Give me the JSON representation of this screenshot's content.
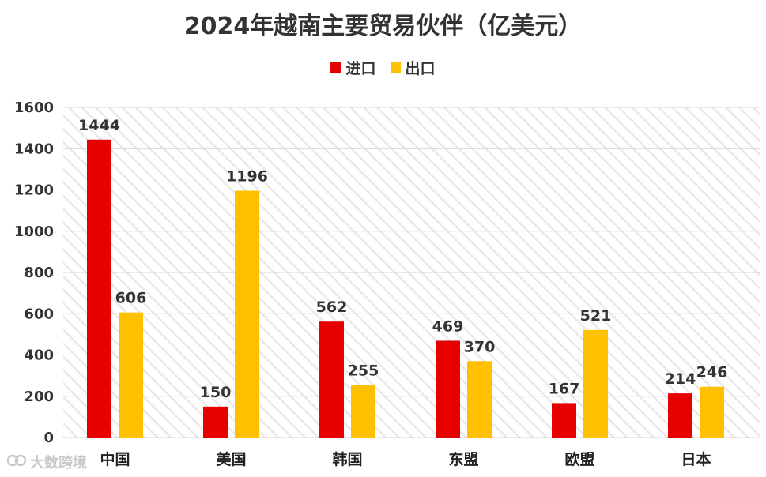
{
  "chart_data": {
    "type": "bar",
    "title": "2024年越南主要贸易伙伴（亿美元）",
    "categories": [
      "中国",
      "美国",
      "韩国",
      "东盟",
      "欧盟",
      "日本"
    ],
    "series": [
      {
        "name": "进口",
        "color": "#e60000",
        "values": [
          1444,
          150,
          562,
          469,
          167,
          214
        ]
      },
      {
        "name": "出口",
        "color": "#ffc000",
        "values": [
          606,
          1196,
          255,
          370,
          521,
          246
        ]
      }
    ],
    "ylim": [
      0,
      1600
    ],
    "yticks": [
      0,
      200,
      400,
      600,
      800,
      1000,
      1200,
      1400,
      1600
    ],
    "grid": true,
    "legend_position": "top-center",
    "data_labels": true
  },
  "watermark": {
    "text": "大数跨境",
    "icon": "logo-icon"
  }
}
